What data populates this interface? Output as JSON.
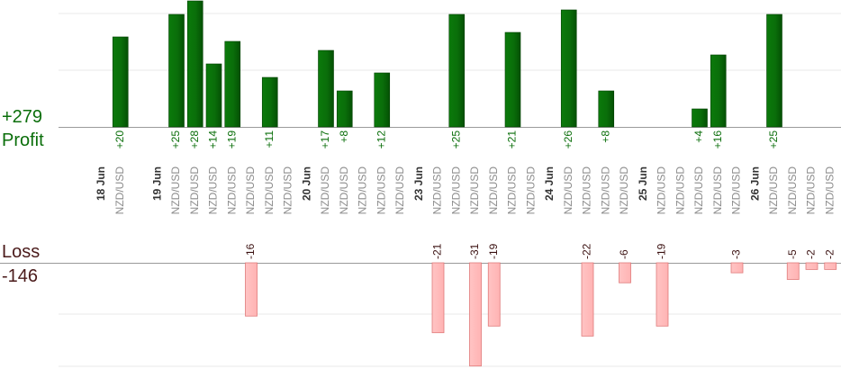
{
  "summary": {
    "profit_total": "+279",
    "profit_label": "Profit",
    "loss_label": "Loss",
    "loss_total": "-146"
  },
  "colors": {
    "profit": "#0a6e0a",
    "loss": "#ffb3b3",
    "grid": "#e8e8e8"
  },
  "chart_data": {
    "type": "bar",
    "pair": "NZD/USD",
    "dates": [
      {
        "label": "18 Jun",
        "slot": 0
      },
      {
        "label": "19 Jun",
        "slot": 3
      },
      {
        "label": "20 Jun",
        "slot": 11
      },
      {
        "label": "23 Jun",
        "slot": 17
      },
      {
        "label": "24 Jun",
        "slot": 24
      },
      {
        "label": "25 Jun",
        "slot": 29
      },
      {
        "label": "26 Jun",
        "slot": 35
      }
    ],
    "trades": [
      {
        "slot": 1,
        "value": 20,
        "label": "+20"
      },
      {
        "slot": 4,
        "value": 25,
        "label": "+25"
      },
      {
        "slot": 5,
        "value": 28,
        "label": "+28"
      },
      {
        "slot": 6,
        "value": 14,
        "label": "+14"
      },
      {
        "slot": 7,
        "value": 19,
        "label": "+19"
      },
      {
        "slot": 8,
        "value": -16,
        "label": "-16"
      },
      {
        "slot": 9,
        "value": 11,
        "label": "+11"
      },
      {
        "slot": 10,
        "value": 0,
        "label": ""
      },
      {
        "slot": 12,
        "value": 17,
        "label": "+17"
      },
      {
        "slot": 13,
        "value": 8,
        "label": "+8"
      },
      {
        "slot": 14,
        "value": 0,
        "label": ""
      },
      {
        "slot": 15,
        "value": 12,
        "label": "+12"
      },
      {
        "slot": 16,
        "value": 0,
        "label": ""
      },
      {
        "slot": 18,
        "value": -21,
        "label": "-21"
      },
      {
        "slot": 19,
        "value": 25,
        "label": "+25"
      },
      {
        "slot": 20,
        "value": -31,
        "label": "-31"
      },
      {
        "slot": 21,
        "value": -19,
        "label": "-19"
      },
      {
        "slot": 22,
        "value": 21,
        "label": "+21"
      },
      {
        "slot": 23,
        "value": 0,
        "label": ""
      },
      {
        "slot": 25,
        "value": 26,
        "label": "+26"
      },
      {
        "slot": 26,
        "value": -22,
        "label": "-22"
      },
      {
        "slot": 27,
        "value": 8,
        "label": "+8"
      },
      {
        "slot": 28,
        "value": -6,
        "label": "-6"
      },
      {
        "slot": 30,
        "value": -19,
        "label": "-19"
      },
      {
        "slot": 31,
        "value": 0,
        "label": ""
      },
      {
        "slot": 32,
        "value": 4,
        "label": "+4"
      },
      {
        "slot": 33,
        "value": 16,
        "label": "+16"
      },
      {
        "slot": 34,
        "value": -3,
        "label": "-3"
      },
      {
        "slot": 36,
        "value": 25,
        "label": "+25"
      },
      {
        "slot": 37,
        "value": -5,
        "label": "-5"
      },
      {
        "slot": 38,
        "value": -2,
        "label": "-2"
      },
      {
        "slot": 39,
        "value": -2,
        "label": "-2"
      }
    ]
  }
}
